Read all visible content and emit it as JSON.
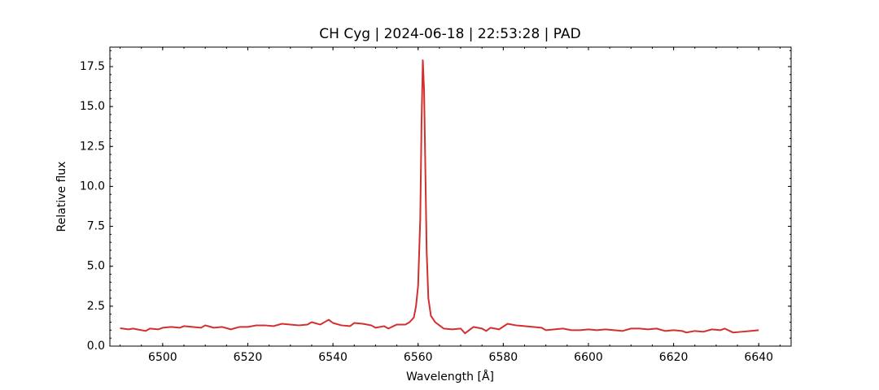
{
  "chart_data": {
    "type": "line",
    "title": "CH Cyg | 2024-06-18 | 22:53:28 | PAD",
    "xlabel": "Wavelength [Å]",
    "ylabel": "Relative flux",
    "x": [
      6490,
      6492,
      6493,
      6494,
      6496,
      6497,
      6499,
      6500,
      6502,
      6504,
      6505,
      6507,
      6509,
      6510,
      6512,
      6514,
      6516,
      6518,
      6520,
      6522,
      6524,
      6526,
      6528,
      6530,
      6532,
      6534,
      6535,
      6537,
      6539,
      6540,
      6542,
      6544,
      6545,
      6547,
      6549,
      6550,
      6552,
      6553,
      6555,
      6557,
      6558,
      6559,
      6559.5,
      6560,
      6560.5,
      6560.8,
      6561.1,
      6561.4,
      6561.7,
      6562,
      6562.4,
      6563,
      6564,
      6565,
      6566,
      6568,
      6570,
      6571,
      6572,
      6573,
      6575,
      6576,
      6577,
      6579,
      6581,
      6583,
      6585,
      6587,
      6589,
      6590,
      6592,
      6594,
      6596,
      6598,
      6600,
      6602,
      6604,
      6606,
      6608,
      6610,
      6612,
      6614,
      6616,
      6618,
      6620,
      6622,
      6623,
      6625,
      6627,
      6629,
      6631,
      6632,
      6634,
      6636,
      6638,
      6640
    ],
    "series": [
      {
        "name": "Relative flux",
        "color": "#d32f2f",
        "values": [
          1.12,
          1.05,
          1.1,
          1.05,
          0.95,
          1.1,
          1.05,
          1.15,
          1.2,
          1.15,
          1.25,
          1.2,
          1.15,
          1.3,
          1.15,
          1.2,
          1.05,
          1.2,
          1.2,
          1.3,
          1.3,
          1.25,
          1.4,
          1.35,
          1.3,
          1.35,
          1.5,
          1.35,
          1.65,
          1.45,
          1.3,
          1.25,
          1.45,
          1.4,
          1.3,
          1.15,
          1.25,
          1.1,
          1.35,
          1.35,
          1.5,
          1.8,
          2.5,
          3.8,
          8,
          14,
          17.9,
          16,
          11,
          6,
          3,
          1.9,
          1.5,
          1.3,
          1.1,
          1.05,
          1.1,
          0.8,
          1.0,
          1.2,
          1.1,
          0.95,
          1.15,
          1.05,
          1.4,
          1.3,
          1.25,
          1.2,
          1.15,
          1.0,
          1.05,
          1.1,
          1.0,
          1.0,
          1.05,
          1.0,
          1.05,
          1.0,
          0.95,
          1.1,
          1.1,
          1.05,
          1.1,
          0.95,
          1.0,
          0.95,
          0.85,
          0.95,
          0.9,
          1.05,
          1.0,
          1.1,
          0.85,
          0.9,
          0.95,
          1.0
        ]
      }
    ],
    "xlim": [
      6487.6,
      6647.6
    ],
    "ylim": [
      0,
      18.72
    ],
    "xticks": [
      6500,
      6520,
      6540,
      6560,
      6580,
      6600,
      6620,
      6640
    ],
    "yticks": [
      {
        "value": 0,
        "label": "0.0"
      },
      2.5,
      {
        "value": 5,
        "label": "5.0"
      },
      7.5,
      {
        "value": 10,
        "label": "10.0"
      },
      12.5,
      {
        "value": 15,
        "label": "15.0"
      },
      17.5
    ],
    "grid": false
  }
}
